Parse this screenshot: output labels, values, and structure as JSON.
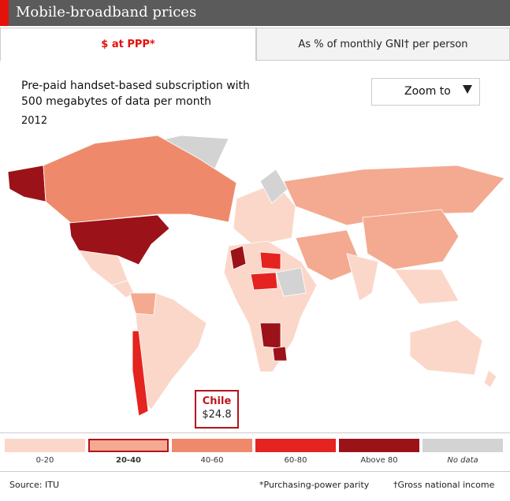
{
  "header": {
    "title": "Mobile-broadband prices"
  },
  "tabs": [
    {
      "label": "$ at PPP*",
      "active": true
    },
    {
      "label": "As % of monthly GNI† per person",
      "active": false
    }
  ],
  "subtitle": [
    "Pre-paid handset-based subscription with",
    "500 megabytes of data per month"
  ],
  "year": "2012",
  "zoom": {
    "label": "Zoom to"
  },
  "tooltip": {
    "country": "Chile",
    "value": "$24.8"
  },
  "legend": [
    {
      "label": "0-20",
      "color": "#fbd7ca",
      "selected": false
    },
    {
      "label": "20-40",
      "color": "#f4aa90",
      "selected": true
    },
    {
      "label": "40-60",
      "color": "#ee8a6b",
      "selected": false
    },
    {
      "label": "60-80",
      "color": "#e5231f",
      "selected": false
    },
    {
      "label": "Above 80",
      "color": "#9b1219",
      "selected": false
    },
    {
      "label": "No data",
      "color": "#d3d3d3",
      "selected": false
    }
  ],
  "footer": {
    "source": "Source: ITU",
    "notes": [
      "*Purchasing-power parity",
      "†Gross national income"
    ]
  }
}
